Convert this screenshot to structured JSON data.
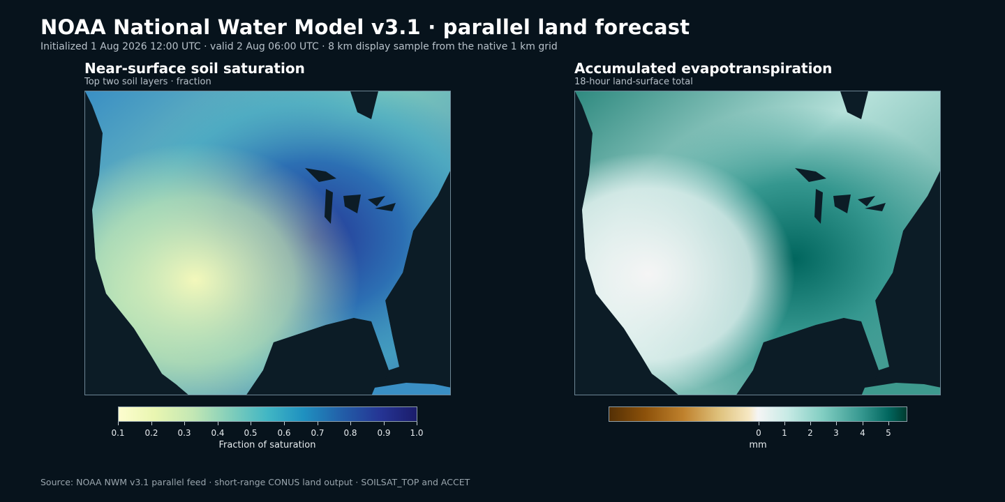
{
  "header": {
    "title": "NOAA National Water Model v3.1 · parallel land forecast",
    "subtitle": "Initialized 1 Aug 2026 12:00 UTC · valid 2 Aug 06:00 UTC · 8 km display sample from the native 1 km grid"
  },
  "panels": [
    {
      "title": "Near-surface soil saturation",
      "subtitle": "Top two soil layers · fraction",
      "colorbar": {
        "label": "Fraction of saturation",
        "ticks": [
          "0.1",
          "0.2",
          "0.3",
          "0.4",
          "0.5",
          "0.6",
          "0.7",
          "0.8",
          "0.9",
          "1.0"
        ],
        "colormap": "YlGnBu"
      }
    },
    {
      "title": "Accumulated evapotranspiration",
      "subtitle": "18-hour land-surface total",
      "colorbar": {
        "label": "mm",
        "ticks": [
          "0",
          "1",
          "2",
          "3",
          "4",
          "5"
        ],
        "colormap": "BrBG"
      }
    }
  ],
  "source": "Source: NOAA NWM v3.1 parallel feed · short-range CONUS land output · SOILSAT_TOP and ACCET"
}
